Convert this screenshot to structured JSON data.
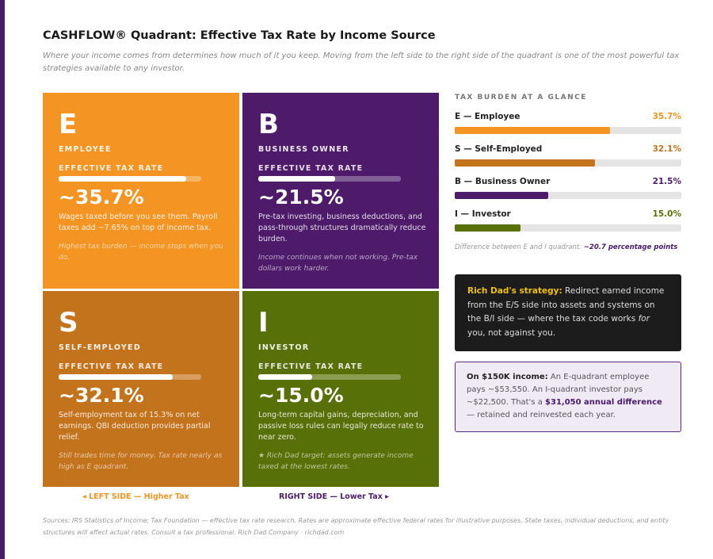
{
  "title": "CASHFLOW® Quadrant: Effective Tax Rate by Income Source",
  "subtitle": "Where your income comes from determines how much of it you keep. Moving from the left side to the right side of the quadrant is one of the most powerful tax strategies available to any investor.",
  "quadrants": [
    {
      "letter": "E",
      "name": "EMPLOYEE",
      "rate_label": "EFFECTIVE TAX RATE",
      "rate": "~35.7%",
      "rate_value": 35.7,
      "desc": "Wages taxed before you see them. Payroll taxes add ~7.65% on top of income tax.",
      "note": "Highest tax burden — income stops when you do.",
      "color": "#f39423"
    },
    {
      "letter": "B",
      "name": "BUSINESS OWNER",
      "rate_label": "EFFECTIVE TAX RATE",
      "rate": "~21.5%",
      "rate_value": 21.5,
      "desc": "Pre-tax investing, business deductions, and pass-through structures dramatically reduce burden.",
      "note": "Income continues when not working. Pre-tax dollars work harder.",
      "color": "#4e1b6a"
    },
    {
      "letter": "S",
      "name": "SELF-EMPLOYED",
      "rate_label": "EFFECTIVE TAX RATE",
      "rate": "~32.1%",
      "rate_value": 32.1,
      "desc": "Self-employment tax of 15.3% on net earnings. QBI deduction provides partial relief.",
      "note": "Still trades time for money. Tax rate nearly as high as E quadrant.",
      "color": "#c4731d"
    },
    {
      "letter": "I",
      "name": "INVESTOR",
      "rate_label": "EFFECTIVE TAX RATE",
      "rate": "~15.0%",
      "rate_value": 15.0,
      "desc": "Long-term capital gains, depreciation, and passive loss rules can legally reduce rate to near zero.",
      "note": "★ Rich Dad target: assets generate income taxed at the lowest rates.",
      "color": "#587008"
    }
  ],
  "quadrant_bar_max": 40,
  "left_side": "◂ LEFT SIDE — Higher Tax",
  "right_side": "RIGHT SIDE — Lower Tax ▸",
  "glance": {
    "heading": "TAX BURDEN AT A GLANCE",
    "bar_max": 52,
    "rows": [
      {
        "label": "E — Employee",
        "value_text": "35.7%",
        "value": 35.7,
        "color": "#f39423"
      },
      {
        "label": "S — Self-Employed",
        "value_text": "32.1%",
        "value": 32.1,
        "color": "#c4731d"
      },
      {
        "label": "B — Business Owner",
        "value_text": "21.5%",
        "value": 21.5,
        "color": "#4e1b6a"
      },
      {
        "label": "I — Investor",
        "value_text": "15.0%",
        "value": 15.0,
        "color": "#587008"
      }
    ],
    "diff_text": "Difference between E and I quadrant: ",
    "diff_value": "~20.7 percentage points"
  },
  "strategy": {
    "highlight": "Rich Dad's strategy:",
    "text1": " Redirect earned income from the E/S side into assets and systems on the B/I side — where the tax code works ",
    "emph": "for",
    "text2": " you, not against you."
  },
  "example": {
    "lead": "On $150K income:",
    "text1": " An E-quadrant employee pays ~$53,550. An I-quadrant investor pays ~$22,500. That's a ",
    "highlight": "$31,050 annual difference",
    "text2": " — retained and reinvested each year."
  },
  "sources": "Sources: IRS Statistics of Income; Tax Foundation — effective tax rate research. Rates are approximate effective federal rates for illustrative purposes. State taxes, individual deductions, and entity structures will affect actual rates. Consult a tax professional. Rich Dad Company · richdad.com"
}
